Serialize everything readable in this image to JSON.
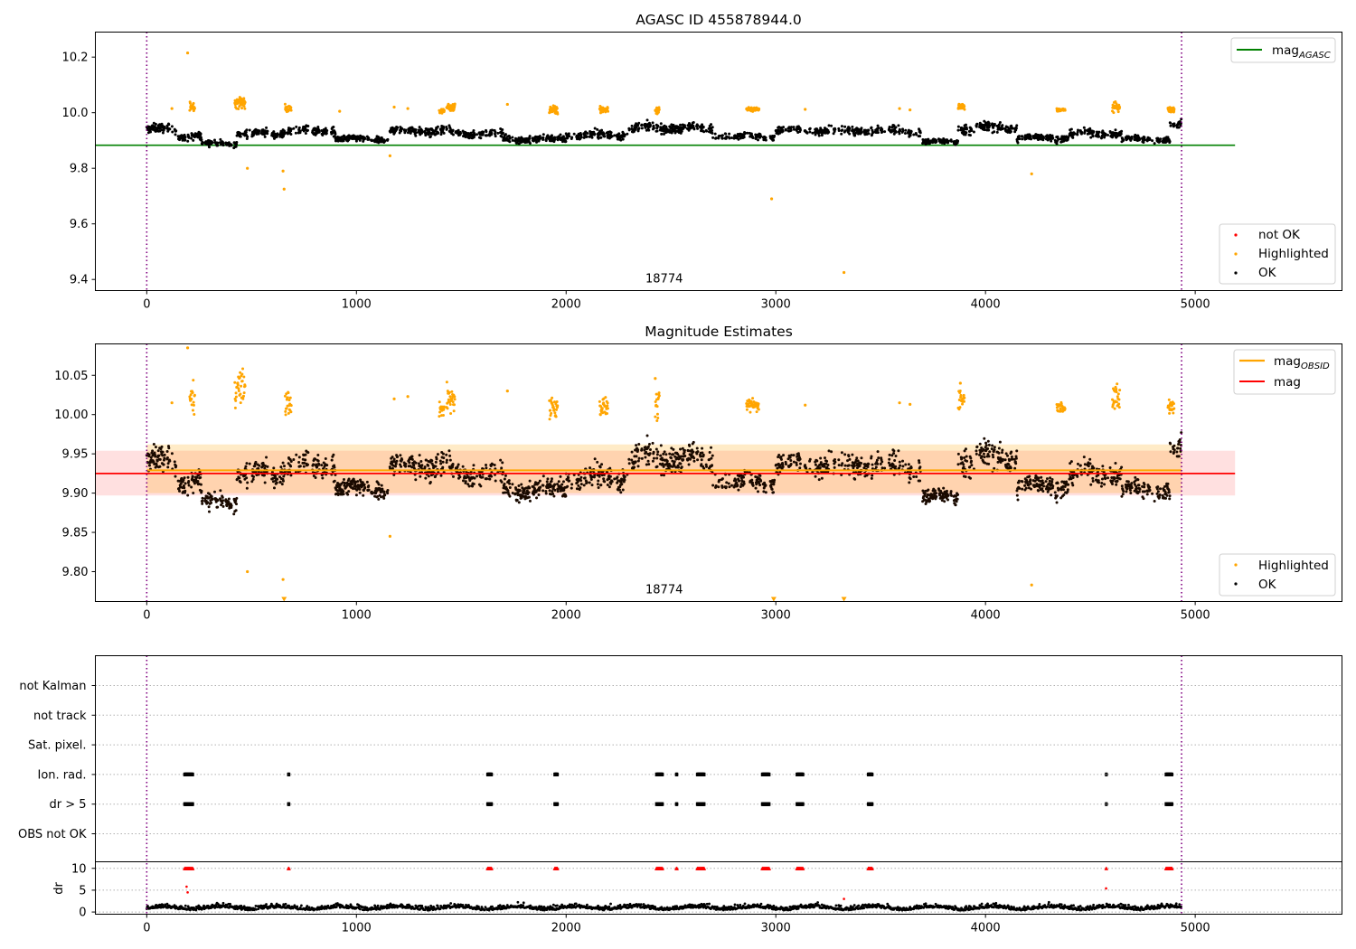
{
  "chart_data": [
    {
      "type": "scatter",
      "title": "AGASC ID 455878944.0",
      "xlim": [
        -245,
        5700
      ],
      "ylim": [
        9.36,
        10.29
      ],
      "xticks": [
        0,
        1000,
        2000,
        3000,
        4000,
        5000
      ],
      "yticks": [
        9.4,
        9.6,
        9.8,
        10.0,
        10.2
      ],
      "ytick_labels": [
        "9.4",
        "9.6",
        "9.8",
        "10.0",
        "10.2"
      ],
      "grid": false,
      "obsid_label": "18774",
      "obsid_bounds": [
        0,
        4935
      ],
      "mag_agasc": 9.883,
      "mag_agasc_x_range": [
        -245,
        5190
      ],
      "legend_lines": [
        {
          "label": "mag",
          "subscript": "AGASC",
          "color": "#008000"
        }
      ],
      "legend_points": [
        {
          "label": "not OK",
          "color": "#ff0000"
        },
        {
          "label": "Highlighted",
          "color": "#ffa500"
        },
        {
          "label": "OK",
          "color": "#000000"
        }
      ],
      "ok_segments": [
        {
          "x": [
            0,
            150
          ],
          "level": 9.94,
          "noise": 0.014
        },
        {
          "x": [
            150,
            260
          ],
          "level": 9.915,
          "noise": 0.012
        },
        {
          "x": [
            260,
            430
          ],
          "level": 9.89,
          "noise": 0.01
        },
        {
          "x": [
            430,
            650
          ],
          "level": 9.925,
          "noise": 0.013
        },
        {
          "x": [
            650,
            900
          ],
          "level": 9.935,
          "noise": 0.014
        },
        {
          "x": [
            900,
            1150
          ],
          "level": 9.905,
          "noise": 0.01
        },
        {
          "x": [
            1150,
            1450
          ],
          "level": 9.935,
          "noise": 0.014
        },
        {
          "x": [
            1450,
            1700
          ],
          "level": 9.925,
          "noise": 0.012
        },
        {
          "x": [
            1700,
            2000
          ],
          "level": 9.905,
          "noise": 0.011
        },
        {
          "x": [
            2000,
            2300
          ],
          "level": 9.92,
          "noise": 0.013
        },
        {
          "x": [
            2300,
            2700
          ],
          "level": 9.945,
          "noise": 0.014
        },
        {
          "x": [
            2700,
            3000
          ],
          "level": 9.915,
          "noise": 0.011
        },
        {
          "x": [
            3000,
            3300
          ],
          "level": 9.935,
          "noise": 0.013
        },
        {
          "x": [
            3300,
            3700
          ],
          "level": 9.935,
          "noise": 0.015
        },
        {
          "x": [
            3700,
            3870
          ],
          "level": 9.895,
          "noise": 0.009
        },
        {
          "x": [
            3870,
            4150
          ],
          "level": 9.945,
          "noise": 0.016
        },
        {
          "x": [
            4150,
            4400
          ],
          "level": 9.91,
          "noise": 0.012
        },
        {
          "x": [
            4400,
            4650
          ],
          "level": 9.925,
          "noise": 0.012
        },
        {
          "x": [
            4650,
            4880
          ],
          "level": 9.905,
          "noise": 0.011
        },
        {
          "x": [
            4880,
            4935
          ],
          "level": 9.955,
          "noise": 0.015
        }
      ],
      "highlight_clusters": [
        {
          "x": [
            205,
            230
          ],
          "level": 10.02,
          "noise": 0.015
        },
        {
          "x": [
            420,
            470
          ],
          "level": 10.035,
          "noise": 0.015
        },
        {
          "x": [
            660,
            690
          ],
          "level": 10.015,
          "noise": 0.012
        },
        {
          "x": [
            1395,
            1420
          ],
          "level": 10.005,
          "noise": 0.008
        },
        {
          "x": [
            1430,
            1470
          ],
          "level": 10.02,
          "noise": 0.012
        },
        {
          "x": [
            1920,
            1960
          ],
          "level": 10.01,
          "noise": 0.012
        },
        {
          "x": [
            2160,
            2200
          ],
          "level": 10.01,
          "noise": 0.008
        },
        {
          "x": [
            2425,
            2445
          ],
          "level": 10.01,
          "noise": 0.012
        },
        {
          "x": [
            2860,
            2920
          ],
          "level": 10.012,
          "noise": 0.006
        },
        {
          "x": [
            3870,
            3900
          ],
          "level": 10.02,
          "noise": 0.01
        },
        {
          "x": [
            4340,
            4380
          ],
          "level": 10.01,
          "noise": 0.004
        },
        {
          "x": [
            4605,
            4640
          ],
          "level": 10.02,
          "noise": 0.012
        },
        {
          "x": [
            4870,
            4900
          ],
          "level": 10.01,
          "noise": 0.008
        }
      ],
      "highlight_singles": [
        {
          "x": 195,
          "y": 10.215
        },
        {
          "x": 480,
          "y": 9.8
        },
        {
          "x": 650,
          "y": 9.79
        },
        {
          "x": 655,
          "y": 9.725
        },
        {
          "x": 1160,
          "y": 9.845
        },
        {
          "x": 1180,
          "y": 10.02
        },
        {
          "x": 1245,
          "y": 10.015
        },
        {
          "x": 1720,
          "y": 10.03
        },
        {
          "x": 2980,
          "y": 9.69
        },
        {
          "x": 3140,
          "y": 10.012
        },
        {
          "x": 3325,
          "y": 9.425
        },
        {
          "x": 3590,
          "y": 10.015
        },
        {
          "x": 4220,
          "y": 9.78
        },
        {
          "x": 920,
          "y": 10.005
        },
        {
          "x": 120,
          "y": 10.015
        },
        {
          "x": 3640,
          "y": 10.01
        }
      ]
    },
    {
      "type": "scatter",
      "title": "Magnitude Estimates",
      "xlim": [
        -245,
        5700
      ],
      "ylim": [
        9.762,
        10.09
      ],
      "xticks": [
        0,
        1000,
        2000,
        3000,
        4000,
        5000
      ],
      "yticks": [
        9.8,
        9.85,
        9.9,
        9.95,
        10.0,
        10.05
      ],
      "ytick_labels": [
        "9.80",
        "9.85",
        "9.90",
        "9.95",
        "10.00",
        "10.05"
      ],
      "grid": false,
      "obsid_label": "18774",
      "obsid_bounds": [
        0,
        4935
      ],
      "mag": 9.925,
      "mag_band": [
        9.897,
        9.954
      ],
      "mag_band_x_range": [
        -245,
        5190
      ],
      "mag_obsid": 9.929,
      "mag_obsid_band": [
        9.9,
        9.962
      ],
      "legend_lines": [
        {
          "label": "mag",
          "subscript": "OBSID",
          "color": "#ffa500"
        },
        {
          "label": "mag",
          "subscript": "",
          "color": "#ff0000"
        }
      ],
      "legend_points": [
        {
          "label": "Highlighted",
          "color": "#ffa500"
        },
        {
          "label": "OK",
          "color": "#000000"
        }
      ],
      "clipped_markers_x": [
        655,
        2990,
        3325
      ],
      "highlight_singles": [
        {
          "x": 195,
          "y": 10.085
        },
        {
          "x": 480,
          "y": 9.8
        },
        {
          "x": 650,
          "y": 9.79
        },
        {
          "x": 1160,
          "y": 9.845
        },
        {
          "x": 1180,
          "y": 10.02
        },
        {
          "x": 1245,
          "y": 10.023
        },
        {
          "x": 1720,
          "y": 10.03
        },
        {
          "x": 3140,
          "y": 10.012
        },
        {
          "x": 3590,
          "y": 10.015
        },
        {
          "x": 4220,
          "y": 9.783
        },
        {
          "x": 2425,
          "y": 10.046
        },
        {
          "x": 120,
          "y": 10.015
        },
        {
          "x": 3640,
          "y": 10.013
        },
        {
          "x": 3880,
          "y": 10.04
        }
      ]
    },
    {
      "type": "scatter",
      "xlim": [
        -245,
        5700
      ],
      "xticks": [
        0,
        1000,
        2000,
        3000,
        4000,
        5000
      ],
      "obsid_bounds": [
        0,
        4935
      ],
      "flag_rows": [
        "not Kalman",
        "not track",
        "Sat. pixel.",
        "Ion. rad.",
        "dr > 5",
        "OBS not OK"
      ],
      "flag_x_ranges": [
        [
          180,
          220
        ],
        [
          675,
          680
        ],
        [
          1625,
          1645
        ],
        [
          1945,
          1960
        ],
        [
          2430,
          2460
        ],
        [
          2525,
          2530
        ],
        [
          2625,
          2660
        ],
        [
          2935,
          2970
        ],
        [
          3100,
          3130
        ],
        [
          3440,
          3460
        ],
        [
          4575,
          4578
        ],
        [
          4860,
          4890
        ]
      ],
      "flagged_rows": [
        "Ion. rad.",
        "dr > 5"
      ],
      "dr_ylabel": "dr",
      "dr_ylim": [
        -0.5,
        11.5
      ],
      "dr_yticks": [
        0,
        5,
        10
      ],
      "dr_clip": 10,
      "dr_outliers": [
        {
          "x": 190,
          "y": 5.8
        },
        {
          "x": 195,
          "y": 4.5
        },
        {
          "x": 4575,
          "y": 5.4
        },
        {
          "x": 3325,
          "y": 3.0
        }
      ]
    }
  ]
}
